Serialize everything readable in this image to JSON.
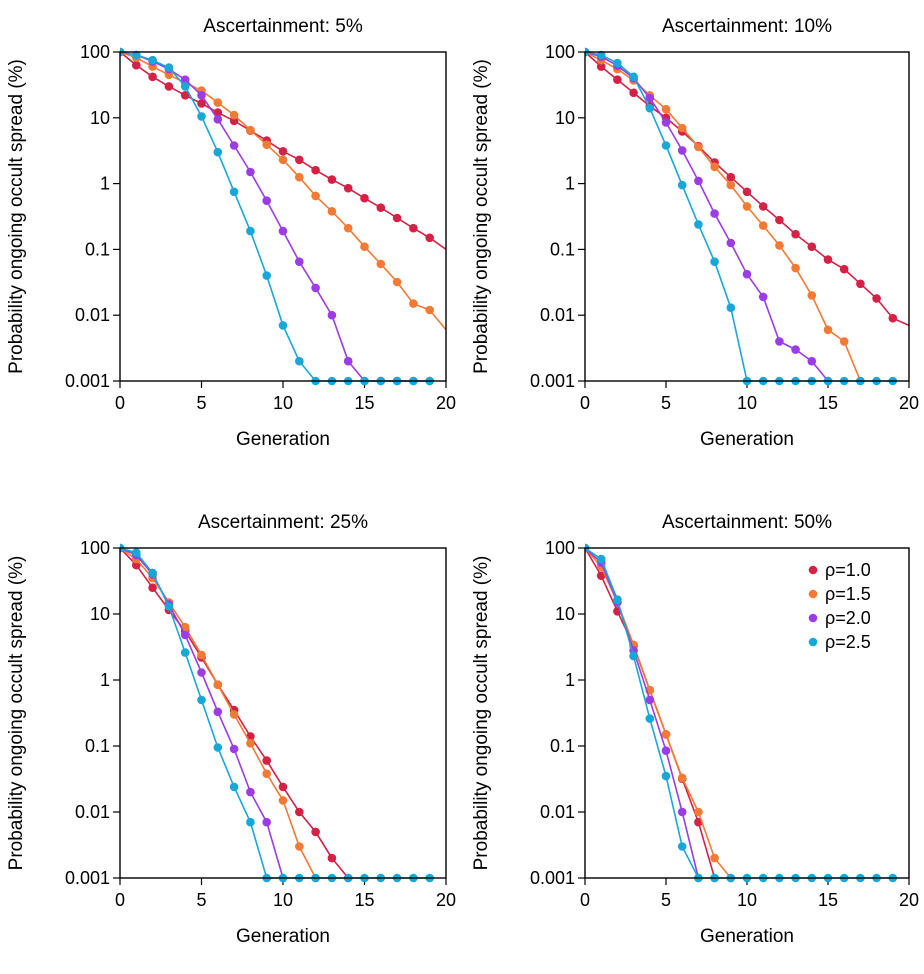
{
  "figure": {
    "shared_xlabel": "Generation",
    "shared_ylabel": "Probability ongoing occult spread (%)",
    "colors": {
      "rho_1.0": "#d42145",
      "rho_1.5": "#f27a35",
      "rho_2.0": "#9c3ce6",
      "rho_2.5": "#17a8d9"
    }
  },
  "chart_data": [
    {
      "type": "line",
      "title": "Ascertainment: 5%",
      "xlabel": "Generation",
      "ylabel": "Probability ongoing occult spread (%)",
      "yscale": "log",
      "xlim": [
        0,
        20
      ],
      "ylim": [
        0.001,
        100
      ],
      "xticks": [
        "0",
        "5",
        "10",
        "15",
        "20"
      ],
      "yticks": [
        "0.001",
        "0.01",
        "0.1",
        "1",
        "10",
        "100"
      ],
      "legend": false,
      "series": [
        {
          "name": "ρ=1.0",
          "color": "#d42145",
          "x": [
            0,
            1,
            2,
            3,
            4,
            5,
            6,
            7,
            8,
            9,
            10,
            11,
            12,
            13,
            14,
            15,
            16,
            17,
            18,
            19
          ],
          "y": [
            100,
            63,
            42,
            30,
            22,
            16.5,
            12,
            9,
            6.4,
            4.5,
            3.1,
            2.3,
            1.6,
            1.15,
            0.85,
            0.6,
            0.43,
            0.3,
            0.21,
            0.15
          ],
          "line_end": [
            20,
            0.1
          ]
        },
        {
          "name": "ρ=1.5",
          "color": "#f27a35",
          "x": [
            0,
            1,
            2,
            3,
            4,
            5,
            6,
            7,
            8,
            9,
            10,
            11,
            12,
            13,
            14,
            15,
            16,
            17,
            18,
            19
          ],
          "y": [
            100,
            82,
            60,
            45,
            34,
            26,
            17,
            11,
            6.5,
            3.9,
            2.3,
            1.25,
            0.65,
            0.38,
            0.21,
            0.11,
            0.06,
            0.032,
            0.015,
            0.012
          ],
          "line_end": [
            20,
            0.006
          ]
        },
        {
          "name": "ρ=2.0",
          "color": "#9c3ce6",
          "x": [
            0,
            1,
            2,
            3,
            4,
            5,
            6,
            7,
            8,
            9,
            10,
            11,
            12,
            13,
            14,
            15,
            16,
            17,
            18,
            19
          ],
          "y": [
            100,
            90,
            72,
            55,
            38,
            22,
            9.5,
            3.8,
            1.5,
            0.55,
            0.19,
            0.065,
            0.026,
            0.01,
            0.002,
            0.001,
            0.001,
            0.001,
            0.001,
            0.001
          ]
        },
        {
          "name": "ρ=2.5",
          "color": "#17a8d9",
          "x": [
            0,
            1,
            2,
            3,
            4,
            5,
            6,
            7,
            8,
            9,
            10,
            11,
            12,
            13,
            14,
            15,
            16,
            17,
            18,
            19
          ],
          "y": [
            100,
            90,
            75,
            58,
            30,
            10.5,
            3,
            0.75,
            0.19,
            0.04,
            0.007,
            0.002,
            0.001,
            0.001,
            0.001,
            0.001,
            0.001,
            0.001,
            0.001,
            0.001
          ]
        }
      ]
    },
    {
      "type": "line",
      "title": "Ascertainment: 10%",
      "xlabel": "Generation",
      "ylabel": "Probability ongoing occult spread (%)",
      "yscale": "log",
      "xlim": [
        0,
        20
      ],
      "ylim": [
        0.001,
        100
      ],
      "xticks": [
        "0",
        "5",
        "10",
        "15",
        "20"
      ],
      "yticks": [
        "0.001",
        "0.01",
        "0.1",
        "1",
        "10",
        "100"
      ],
      "legend": false,
      "series": [
        {
          "name": "ρ=1.0",
          "color": "#d42145",
          "x": [
            0,
            1,
            2,
            3,
            4,
            5,
            6,
            7,
            8,
            9,
            10,
            11,
            12,
            13,
            14,
            15,
            16,
            17,
            18,
            19
          ],
          "y": [
            100,
            60,
            38,
            24,
            15,
            10,
            6.2,
            3.7,
            2.1,
            1.25,
            0.75,
            0.45,
            0.28,
            0.17,
            0.11,
            0.07,
            0.05,
            0.03,
            0.018,
            0.009
          ],
          "line_end": [
            20,
            0.007
          ]
        },
        {
          "name": "ρ=1.5",
          "color": "#f27a35",
          "x": [
            0,
            1,
            2,
            3,
            4,
            5,
            6,
            7,
            8,
            9,
            10,
            11,
            12,
            13,
            14,
            15,
            16,
            17
          ],
          "y": [
            100,
            75,
            55,
            37,
            22,
            13.5,
            7,
            3.6,
            1.8,
            0.95,
            0.45,
            0.23,
            0.115,
            0.052,
            0.02,
            0.006,
            0.004,
            0.001
          ]
        },
        {
          "name": "ρ=2.0",
          "color": "#9c3ce6",
          "x": [
            0,
            1,
            2,
            3,
            4,
            5,
            6,
            7,
            8,
            9,
            10,
            11,
            12,
            13,
            14,
            15
          ],
          "y": [
            100,
            85,
            62,
            40,
            20,
            8.5,
            3.2,
            1.1,
            0.35,
            0.125,
            0.042,
            0.019,
            0.004,
            0.003,
            0.002,
            0.001
          ]
        },
        {
          "name": "ρ=2.5",
          "color": "#17a8d9",
          "x": [
            0,
            1,
            2,
            3,
            4,
            5,
            6,
            7,
            8,
            9,
            10,
            11,
            12,
            13,
            14,
            15,
            16,
            17,
            18,
            19
          ],
          "y": [
            100,
            90,
            68,
            42,
            14,
            3.8,
            0.95,
            0.24,
            0.065,
            0.013,
            0.001,
            0.001,
            0.001,
            0.001,
            0.001,
            0.001,
            0.001,
            0.001,
            0.001,
            0.001
          ]
        }
      ]
    },
    {
      "type": "line",
      "title": "Ascertainment: 25%",
      "xlabel": "Generation",
      "ylabel": "Probability ongoing occult spread (%)",
      "yscale": "log",
      "xlim": [
        0,
        20
      ],
      "ylim": [
        0.001,
        100
      ],
      "xticks": [
        "0",
        "5",
        "10",
        "15",
        "20"
      ],
      "yticks": [
        "0.001",
        "0.01",
        "0.1",
        "1",
        "10",
        "100"
      ],
      "legend": false,
      "series": [
        {
          "name": "ρ=1.0",
          "color": "#d42145",
          "x": [
            0,
            1,
            2,
            3,
            4,
            5,
            6,
            7,
            8,
            9,
            10,
            11,
            12,
            13,
            14
          ],
          "y": [
            100,
            55,
            25,
            11.5,
            5.5,
            2.2,
            0.85,
            0.35,
            0.14,
            0.06,
            0.024,
            0.01,
            0.005,
            0.002,
            0.001
          ]
        },
        {
          "name": "ρ=1.5",
          "color": "#f27a35",
          "x": [
            0,
            1,
            2,
            3,
            4,
            5,
            6,
            7,
            8,
            9,
            10,
            11,
            12
          ],
          "y": [
            100,
            68,
            35,
            15,
            6.3,
            2.4,
            0.85,
            0.3,
            0.11,
            0.038,
            0.015,
            0.003,
            0.001
          ]
        },
        {
          "name": "ρ=2.0",
          "color": "#9c3ce6",
          "x": [
            0,
            1,
            2,
            3,
            4,
            5,
            6,
            7,
            8,
            9,
            10
          ],
          "y": [
            100,
            78,
            40,
            14,
            4.8,
            1.3,
            0.33,
            0.09,
            0.02,
            0.007,
            0.001
          ]
        },
        {
          "name": "ρ=2.5",
          "color": "#17a8d9",
          "x": [
            0,
            1,
            2,
            3,
            4,
            5,
            6,
            7,
            8,
            9,
            10,
            11,
            12,
            13,
            14,
            15,
            16,
            17,
            18,
            19
          ],
          "y": [
            100,
            85,
            42,
            13,
            2.6,
            0.5,
            0.095,
            0.024,
            0.007,
            0.001,
            0.001,
            0.001,
            0.001,
            0.001,
            0.001,
            0.001,
            0.001,
            0.001,
            0.001,
            0.001
          ]
        }
      ]
    },
    {
      "type": "line",
      "title": "Ascertainment: 50%",
      "xlabel": "Generation",
      "ylabel": "Probability ongoing occult spread (%)",
      "yscale": "log",
      "xlim": [
        0,
        20
      ],
      "ylim": [
        0.001,
        100
      ],
      "xticks": [
        "0",
        "5",
        "10",
        "15",
        "20"
      ],
      "yticks": [
        "0.001",
        "0.01",
        "0.1",
        "1",
        "10",
        "100"
      ],
      "legend": true,
      "legend_position": "top-right",
      "series": [
        {
          "name": "ρ=1.0",
          "color": "#d42145",
          "x": [
            0,
            1,
            2,
            3,
            4,
            5,
            6,
            7,
            8
          ],
          "y": [
            100,
            38,
            11,
            3.3,
            0.7,
            0.15,
            0.032,
            0.007,
            0.001
          ]
        },
        {
          "name": "ρ=1.5",
          "color": "#f27a35",
          "x": [
            0,
            1,
            2,
            3,
            4,
            5,
            6,
            7,
            8,
            9
          ],
          "y": [
            100,
            52,
            15,
            3.4,
            0.7,
            0.15,
            0.033,
            0.01,
            0.002,
            0.001
          ]
        },
        {
          "name": "ρ=2.0",
          "color": "#9c3ce6",
          "x": [
            0,
            1,
            2,
            3,
            4,
            5,
            6,
            7
          ],
          "y": [
            100,
            60,
            15,
            2.8,
            0.5,
            0.085,
            0.01,
            0.001
          ]
        },
        {
          "name": "ρ=2.5",
          "color": "#17a8d9",
          "x": [
            0,
            1,
            2,
            3,
            4,
            5,
            6,
            7,
            8,
            9,
            10,
            11,
            12,
            13,
            14,
            15,
            16,
            17,
            18,
            19
          ],
          "y": [
            100,
            68,
            16.5,
            2.3,
            0.26,
            0.035,
            0.003,
            0.001,
            0.001,
            0.001,
            0.001,
            0.001,
            0.001,
            0.001,
            0.001,
            0.001,
            0.001,
            0.001,
            0.001,
            0.001
          ]
        }
      ]
    }
  ]
}
